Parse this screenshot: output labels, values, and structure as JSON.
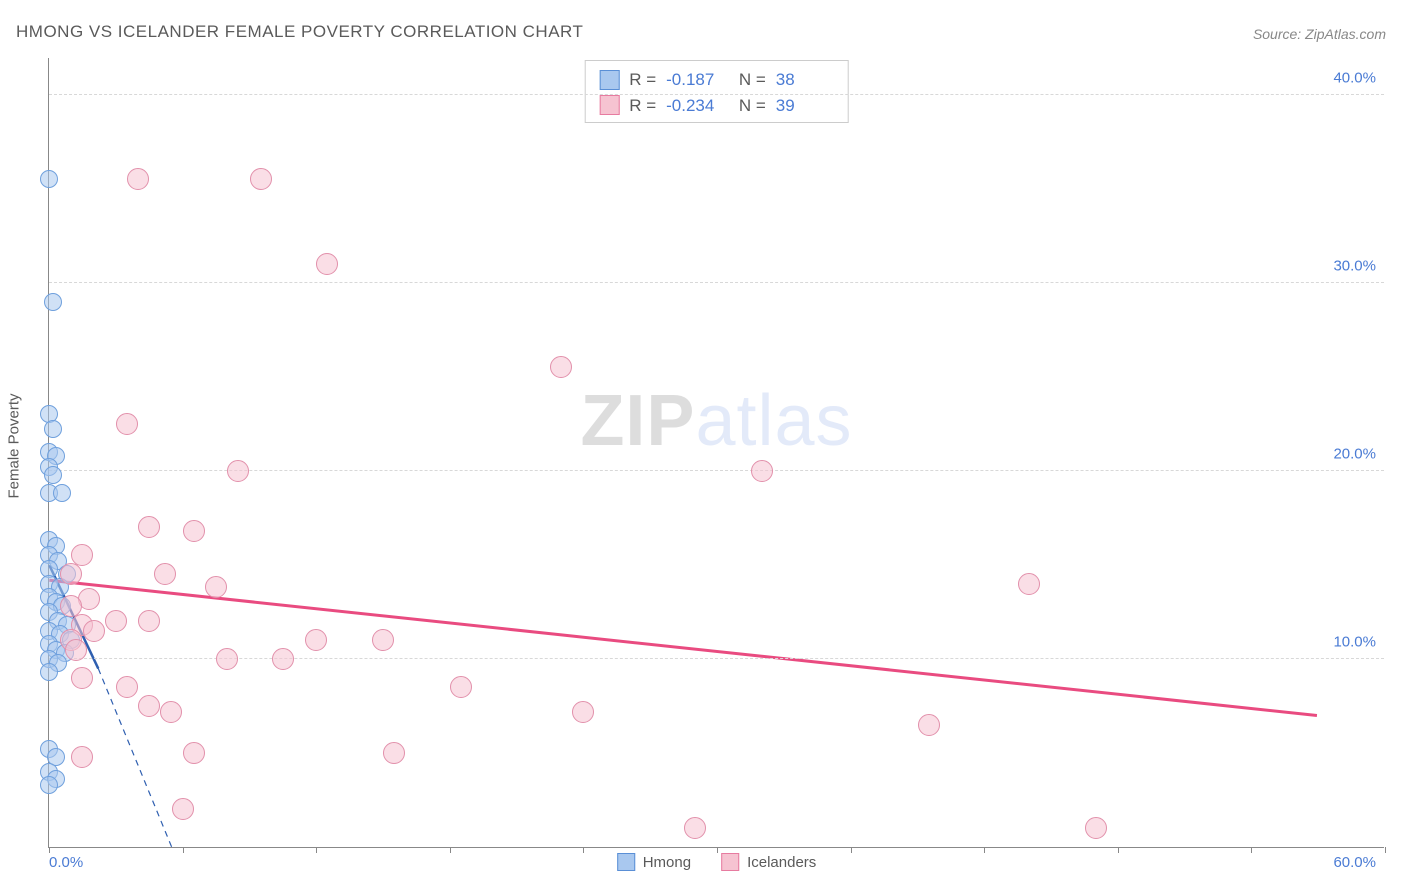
{
  "title": "HMONG VS ICELANDER FEMALE POVERTY CORRELATION CHART",
  "source": "Source: ZipAtlas.com",
  "y_axis_title": "Female Poverty",
  "watermark": {
    "part1": "ZIP",
    "part2": "atlas"
  },
  "chart": {
    "type": "scatter",
    "background_color": "#ffffff",
    "grid_color": "#d8d8d8",
    "axis_color": "#888888",
    "tick_color": "#4a7bd4",
    "text_color": "#5a5a5a",
    "xlim": [
      0,
      60
    ],
    "ylim": [
      0,
      42
    ],
    "x_tick_positions": [
      0,
      6,
      12,
      18,
      24,
      30,
      36,
      42,
      48,
      54,
      60
    ],
    "x_tick_labels_shown": {
      "0": "0.0%",
      "60": "60.0%"
    },
    "y_gridlines": [
      10,
      20,
      30,
      40
    ],
    "y_tick_labels": {
      "10": "10.0%",
      "20": "20.0%",
      "30": "30.0%",
      "40": "40.0%"
    },
    "legend_bottom": [
      {
        "label": "Hmong",
        "fill": "#a9c8ef",
        "stroke": "#5a8fd6"
      },
      {
        "label": "Icelanders",
        "fill": "#f6c3d1",
        "stroke": "#e77ba0"
      }
    ],
    "stats_box": [
      {
        "swatch_fill": "#a9c8ef",
        "swatch_stroke": "#5a8fd6",
        "R": "-0.187",
        "N": "38"
      },
      {
        "swatch_fill": "#f6c3d1",
        "swatch_stroke": "#e77ba0",
        "R": "-0.234",
        "N": "39"
      }
    ],
    "series": [
      {
        "name": "Hmong",
        "marker_fill": "rgba(169,200,239,0.55)",
        "marker_stroke": "#6fa0dd",
        "marker_radius_px": 9,
        "trend": {
          "color": "#2f5fb0",
          "width": 2.5,
          "x1": 0,
          "y1": 15.0,
          "x2": 2.2,
          "y2": 9.5,
          "dash_extend": {
            "x1": 2.2,
            "y1": 9.5,
            "x2": 5.5,
            "y2": 0
          }
        },
        "points": [
          [
            0.0,
            35.5
          ],
          [
            0.2,
            29.0
          ],
          [
            0.0,
            23.0
          ],
          [
            0.2,
            22.2
          ],
          [
            0.0,
            21.0
          ],
          [
            0.3,
            20.8
          ],
          [
            0.0,
            20.2
          ],
          [
            0.2,
            19.8
          ],
          [
            0.0,
            18.8
          ],
          [
            0.6,
            18.8
          ],
          [
            0.0,
            16.3
          ],
          [
            0.3,
            16.0
          ],
          [
            0.0,
            15.5
          ],
          [
            0.4,
            15.2
          ],
          [
            0.0,
            14.8
          ],
          [
            0.8,
            14.5
          ],
          [
            0.0,
            14.0
          ],
          [
            0.5,
            13.8
          ],
          [
            0.0,
            13.3
          ],
          [
            0.3,
            13.0
          ],
          [
            0.6,
            12.8
          ],
          [
            0.0,
            12.5
          ],
          [
            0.4,
            12.0
          ],
          [
            0.8,
            11.8
          ],
          [
            0.0,
            11.5
          ],
          [
            0.5,
            11.3
          ],
          [
            1.0,
            11.0
          ],
          [
            0.0,
            10.8
          ],
          [
            0.3,
            10.5
          ],
          [
            0.7,
            10.3
          ],
          [
            0.0,
            10.0
          ],
          [
            0.4,
            9.8
          ],
          [
            0.0,
            9.3
          ],
          [
            0.0,
            5.2
          ],
          [
            0.3,
            4.8
          ],
          [
            0.0,
            4.0
          ],
          [
            0.3,
            3.6
          ],
          [
            0.0,
            3.3
          ]
        ]
      },
      {
        "name": "Icelanders",
        "marker_fill": "rgba(246,195,209,0.55)",
        "marker_stroke": "#e290ab",
        "marker_radius_px": 11,
        "trend": {
          "color": "#e94b80",
          "width": 3,
          "x1": 0,
          "y1": 14.2,
          "x2": 57,
          "y2": 7.0
        },
        "points": [
          [
            4.0,
            35.5
          ],
          [
            9.5,
            35.5
          ],
          [
            12.5,
            31.0
          ],
          [
            23.0,
            25.5
          ],
          [
            3.5,
            22.5
          ],
          [
            32.0,
            20.0
          ],
          [
            8.5,
            20.0
          ],
          [
            4.5,
            17.0
          ],
          [
            6.5,
            16.8
          ],
          [
            1.5,
            15.5
          ],
          [
            5.2,
            14.5
          ],
          [
            1.0,
            14.5
          ],
          [
            44.0,
            14.0
          ],
          [
            7.5,
            13.8
          ],
          [
            1.8,
            13.2
          ],
          [
            1.0,
            12.8
          ],
          [
            3.0,
            12.0
          ],
          [
            4.5,
            12.0
          ],
          [
            1.5,
            11.8
          ],
          [
            2.0,
            11.5
          ],
          [
            12.0,
            11.0
          ],
          [
            15.0,
            11.0
          ],
          [
            1.0,
            11.0
          ],
          [
            8.0,
            10.0
          ],
          [
            10.5,
            10.0
          ],
          [
            1.5,
            9.0
          ],
          [
            3.5,
            8.5
          ],
          [
            18.5,
            8.5
          ],
          [
            4.5,
            7.5
          ],
          [
            5.5,
            7.2
          ],
          [
            24.0,
            7.2
          ],
          [
            39.5,
            6.5
          ],
          [
            15.5,
            5.0
          ],
          [
            6.5,
            5.0
          ],
          [
            1.5,
            4.8
          ],
          [
            6.0,
            2.0
          ],
          [
            29.0,
            1.0
          ],
          [
            47.0,
            1.0
          ],
          [
            1.2,
            10.5
          ]
        ]
      }
    ]
  }
}
